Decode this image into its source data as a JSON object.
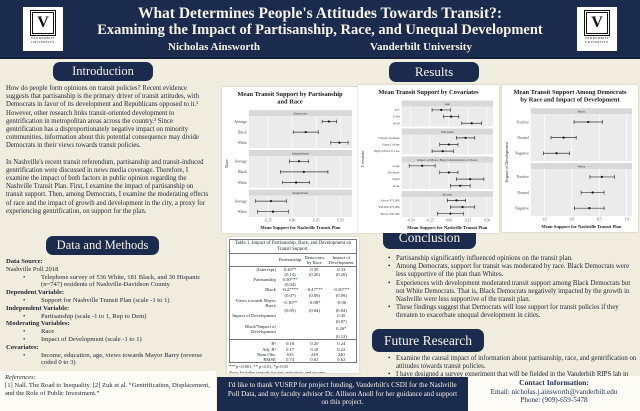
{
  "bullet_char": "•",
  "colors": {
    "navy": "#1b2b4d",
    "cream": "#f0edde",
    "card_white": "#ffffff",
    "panel_grey": "#ebebeb",
    "strip_grey": "#d8d8d8"
  },
  "header": {
    "title_line1": "What Determines People's Attitudes Towards Transit?:",
    "title_line2": "Examining the Impact of Partisanship, Race, and Unequal Development",
    "author": "Nicholas Ainsworth",
    "affiliation": "Vanderbilt University",
    "logo": {
      "mark": "V",
      "line1": "VANDERBILT",
      "line2": "UNIVERSITY"
    }
  },
  "sections": {
    "introduction": {
      "heading": "Introduction",
      "paragraphs": [
        "How do people form opinions on transit policies? Recent evidence suggests that partisanship is the primary driver of transit attitudes, with Democrats in favor of its development and Republicans opposed to it.¹  However, other research links transit-oriented development to gentrification in metropolitan areas across the country.²  Since gentrification has a disproportionately negative impact on minority communities, information about this potential consequence may divide Democrats in their views towards transit policies.",
        "In Nashville's recent transit referendum, partisanship and transit-induced gentrification were discussed in news media coverage. Therefore, I examine the impact of both factors in public opinion regarding the Nashville Transit Plan. First, I examine the impact of partisanship on transit support. Then, among Democrats, I examine the moderating effects of race and the impact of growth and development in the city, a proxy for experiencing gentrification, on support for the plan."
      ]
    },
    "data_methods": {
      "heading": "Data and Methods",
      "items": [
        {
          "type": "label",
          "text": "Data Source:"
        },
        {
          "type": "plain",
          "text": "Nashville Poll 2018"
        },
        {
          "type": "bullet",
          "text": "Telephone survey of 536 White, 181 Black, and 30 Hispanic (n=747) residents of Nashville-Davidson County"
        },
        {
          "type": "label",
          "text": "Dependent Variable:"
        },
        {
          "type": "bullet",
          "text": "Support for Nashville Transit Plan  (scale -1 to 1)"
        },
        {
          "type": "label",
          "text": "Independent Variable:"
        },
        {
          "type": "bullet",
          "text": "Partisanship  (scale -1 to 1, Rep to Dem)"
        },
        {
          "type": "label",
          "text": "Moderating Variables:"
        },
        {
          "type": "bullet",
          "text": "Race"
        },
        {
          "type": "bullet",
          "text": "Impact of Development (scale -1 to 1)"
        },
        {
          "type": "label",
          "text": "Covariates:"
        },
        {
          "type": "bullet",
          "text": "Income, education, age, views towards Mayor Barry (reverse coded 0 to 3)"
        }
      ]
    },
    "references": {
      "heading": "References:",
      "text": "[1] Nall. The Road to Inequality. [2] Zuk et al. “Gentrification, Displacement, and the Role of Public Investment.”"
    },
    "results": {
      "heading": "Results"
    },
    "conclusion": {
      "heading": "Conclusion",
      "items": [
        "Partisanship significantly influenced opinions on the transit plan.",
        "Among Democrats, support for transit was moderated by race. Black Democrats were less supportive of the plan than Whites.",
        "Experiences with development moderated transit support among Black Democrats but not White Democrats. That is, Black Democrats negatively impacted by the growth in Nashville were less supportive of the transit plan.",
        "These findings suggest that Democrats will lose support for transit policies if they threaten to exacerbate unequal development in cities."
      ]
    },
    "future_research": {
      "heading": "Future Research",
      "items": [
        "Examine the causal impact of information about partisanship, race, and gentrification on attitudes towards transit policies.",
        "I have designed a survey experiment that will be fielded in the Vanderbilt RIPS lab in October 2018."
      ]
    },
    "acknowledgment": "I'd like to thank VUSRP for project funding, Vanderbilt's CSDI for the Nashville Poll Data, and my faculty advisor Dr. Allison Anoll for her guidance and support on this project.",
    "contact": {
      "heading": "Contact Information:",
      "email": "Email: nicholas.j.ainsworth@vanderbilt.edu",
      "phone": "Phone: (909)-659-5478"
    }
  },
  "table": {
    "title": "Table 1. Impact of Partisanship, Race, and Development on Transit Support.",
    "columns": [
      "",
      "Partisanship",
      "Democrats by Race",
      "Impact of Development"
    ],
    "coef_rows": [
      [
        "(Intercept)",
        "0.40**",
        "0.39",
        "0.33"
      ],
      [
        "",
        "(0.14)",
        "(0.20)",
        "(0.20)"
      ],
      [
        "Partisanship",
        "0.50***",
        "",
        ""
      ],
      [
        "",
        "(0.04)",
        "",
        ""
      ],
      [
        "Black",
        "-0.27***",
        "-0.47***",
        "-0.50***"
      ],
      [
        "",
        "(0.07)",
        "(0.09)",
        "(0.09)"
      ],
      [
        "Views towards Mayor Barry",
        "-0.16**",
        "-0.08*",
        "-0.06"
      ],
      [
        "",
        "(0.05)",
        "(0.04)",
        "(0.04)"
      ],
      [
        "Impact of Development",
        "",
        "",
        "0.45"
      ],
      [
        "",
        "",
        "",
        "(0.07)"
      ],
      [
        "Black*Impact of Development",
        "",
        "",
        "0.26*"
      ],
      [
        "",
        "",
        "",
        "(0.12)"
      ]
    ],
    "stat_rows": [
      [
        "R²",
        "0.18",
        "0.20",
        "0.24"
      ],
      [
        "Adj. R²",
        "0.17",
        "0.18",
        "0.22"
      ],
      [
        "Num.Obs.",
        "633",
        "249",
        "240"
      ],
      [
        "RMSE",
        "0.74",
        "0.63",
        "0.62"
      ]
    ],
    "signif_note": "***p <0.001, ** p<0.01, *p<0.05",
    "note": "Note: Includes controls for age, education, and income"
  },
  "chart_data": [
    {
      "type": "scatter",
      "title": "Mean Transit Support by Partisanship and Race",
      "xlabel": "Mean Support for Nashville Transit Plan",
      "ylabel": "Race",
      "xlim": [
        -0.45,
        0.62
      ],
      "xticks": [
        -0.25,
        0,
        0.25,
        0.5
      ],
      "xtick_labels": [
        "-0.25",
        "0.00",
        "0.25",
        "0.50"
      ],
      "facets": [
        {
          "label": "Democrats",
          "points": [
            {
              "label": "Average",
              "value": 0.38,
              "lo": 0.31,
              "hi": 0.46
            },
            {
              "label": "Black",
              "value": 0.14,
              "lo": 0.01,
              "hi": 0.27
            },
            {
              "label": "White",
              "value": 0.49,
              "lo": 0.4,
              "hi": 0.58
            }
          ]
        },
        {
          "label": "Independents",
          "points": [
            {
              "label": "Average",
              "value": 0.07,
              "lo": -0.03,
              "hi": 0.17
            },
            {
              "label": "Black",
              "value": 0.12,
              "lo": -0.12,
              "hi": 0.37
            },
            {
              "label": "White",
              "value": 0.04,
              "lo": -0.1,
              "hi": 0.18
            }
          ]
        },
        {
          "label": "Republicans",
          "points": [
            {
              "label": "Average",
              "value": -0.22,
              "lo": -0.38,
              "hi": -0.06
            },
            {
              "label": "White",
              "value": -0.2,
              "lo": -0.36,
              "hi": -0.04
            }
          ]
        }
      ]
    },
    {
      "type": "scatter",
      "title": "Mean Transit Support by Covariates",
      "xlabel": "Mean Support for Nashville Transit Plan",
      "ylabel": "Covariate",
      "xlim": [
        -0.62,
        0.58
      ],
      "xticks": [
        -0.5,
        -0.25,
        0,
        0.25,
        0.5
      ],
      "xtick_labels": [
        "-0.50",
        "-0.25",
        "0.00",
        "0.25",
        "0.50"
      ],
      "facets": [
        {
          "label": "Age",
          "points": [
            {
              "label": "65+",
              "value": -0.1,
              "lo": -0.22,
              "hi": 0.02
            },
            {
              "label": "35-64",
              "value": 0.03,
              "lo": -0.07,
              "hi": 0.13
            },
            {
              "label": "18-34",
              "value": 0.3,
              "lo": 0.17,
              "hi": 0.43
            }
          ]
        },
        {
          "label": "Education",
          "points": [
            {
              "label": "College Graduate",
              "value": 0.22,
              "lo": 0.1,
              "hi": 0.34
            },
            {
              "label": "Some College",
              "value": 0.0,
              "lo": -0.12,
              "hi": 0.12
            },
            {
              "label": "High School or Less",
              "value": -0.08,
              "lo": -0.22,
              "hi": 0.06
            }
          ]
        },
        {
          "label": "Impact of Mayor Barry's Resignation on Views",
          "points": [
            {
              "label": "Large",
              "value": -0.35,
              "lo": -0.52,
              "hi": -0.18
            },
            {
              "label": "Moderate",
              "value": 0.0,
              "lo": -0.12,
              "hi": 0.12
            },
            {
              "label": "Small",
              "value": 0.28,
              "lo": 0.1,
              "hi": 0.46
            },
            {
              "label": "None",
              "value": 0.15,
              "lo": 0.02,
              "hi": 0.28
            }
          ]
        },
        {
          "label": "Income",
          "points": [
            {
              "label": "Above $75,000",
              "value": 0.1,
              "lo": -0.02,
              "hi": 0.22
            },
            {
              "label": "$50,000-$75,000",
              "value": 0.18,
              "lo": 0.02,
              "hi": 0.34
            },
            {
              "label": "Below $50,000",
              "value": 0.02,
              "lo": -0.15,
              "hi": 0.19
            }
          ]
        }
      ]
    },
    {
      "type": "scatter",
      "title": "Mean Transit Support Among Democrats by Race and Impact of Development",
      "xlabel": "Mean Support for Nashville Transit Plan",
      "ylabel": "Impact of Development",
      "xlim": [
        -0.75,
        1.1
      ],
      "xticks": [
        -0.5,
        0,
        0.5,
        1
      ],
      "xtick_labels": [
        "-0.5",
        "0.0",
        "0.5",
        "1.0"
      ],
      "facets": [
        {
          "label": "Black",
          "points": [
            {
              "label": "Positive",
              "value": 0.3,
              "lo": 0.04,
              "hi": 0.56
            },
            {
              "label": "Neutral",
              "value": -0.15,
              "lo": -0.38,
              "hi": 0.08
            },
            {
              "label": "Negative",
              "value": -0.28,
              "lo": -0.52,
              "hi": -0.04
            }
          ]
        },
        {
          "label": "White",
          "points": [
            {
              "label": "Positive",
              "value": 0.55,
              "lo": 0.33,
              "hi": 0.78
            },
            {
              "label": "Neutral",
              "value": 0.38,
              "lo": 0.17,
              "hi": 0.59
            },
            {
              "label": "Negative",
              "value": 0.32,
              "lo": 0.05,
              "hi": 0.59
            }
          ]
        }
      ]
    }
  ]
}
